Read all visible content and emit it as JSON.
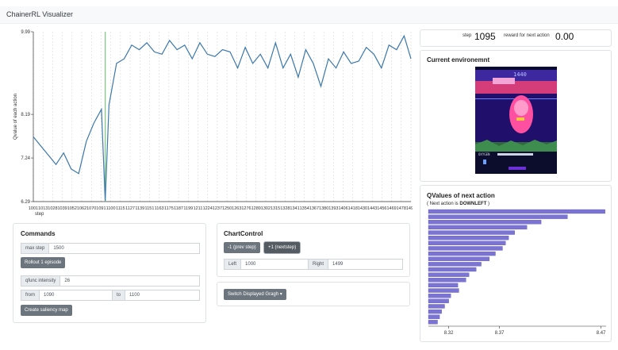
{
  "navbar": {
    "brand": "ChainerRL Visualizer"
  },
  "chart": {
    "ylabel": "Qvalue of each action",
    "xlabel": "step",
    "y_ticks": [
      "9.99",
      "8.19",
      "7.24",
      "6.29"
    ],
    "x_ticks": [
      "1001",
      "1013",
      "1028",
      "1039",
      "1052",
      "1062",
      "1070",
      "1091",
      "1100",
      "1115",
      "1127",
      "1139",
      "1151",
      "1163",
      "1175",
      "1187",
      "1199",
      "1211",
      "1224",
      "1237",
      "1250",
      "1263",
      "1276",
      "1289",
      "1302",
      "1315",
      "1328",
      "1341",
      "1354",
      "1367",
      "1380",
      "1393",
      "1406",
      "1418",
      "1430",
      "1443",
      "1456",
      "1469",
      "1478",
      "1490"
    ],
    "line_color": "#3b78ab",
    "marker_color": "#7ec47e"
  },
  "chart_data": {
    "type": "line",
    "xlabel": "step",
    "ylabel": "Qvalue of each action",
    "xlim": [
      1000,
      1499
    ],
    "ylim": [
      6.29,
      9.99
    ],
    "highlight_step": 1095,
    "x": [
      1000,
      1010,
      1020,
      1030,
      1040,
      1050,
      1060,
      1070,
      1080,
      1090,
      1095,
      1100,
      1110,
      1120,
      1130,
      1140,
      1150,
      1160,
      1170,
      1180,
      1190,
      1200,
      1210,
      1220,
      1230,
      1240,
      1250,
      1260,
      1270,
      1280,
      1290,
      1300,
      1310,
      1320,
      1330,
      1340,
      1350,
      1360,
      1370,
      1380,
      1390,
      1400,
      1410,
      1420,
      1430,
      1440,
      1450,
      1460,
      1470,
      1480,
      1490,
      1499
    ],
    "series": [
      {
        "values": [
          7.7,
          7.5,
          7.3,
          7.1,
          7.35,
          7.0,
          6.9,
          7.6,
          8.0,
          8.3,
          6.3,
          8.4,
          9.3,
          9.4,
          9.7,
          9.6,
          9.75,
          9.55,
          9.5,
          9.8,
          9.6,
          9.7,
          9.4,
          9.75,
          9.5,
          9.45,
          9.6,
          9.55,
          9.2,
          9.65,
          9.3,
          9.5,
          9.2,
          9.75,
          9.2,
          9.5,
          9.0,
          9.6,
          9.3,
          8.8,
          9.4,
          9.2,
          9.55,
          9.3,
          9.35,
          9.65,
          9.5,
          9.2,
          9.7,
          9.6,
          9.9,
          9.4
        ]
      }
    ]
  },
  "commands": {
    "title": "Commands",
    "max_step_label": "max step",
    "max_step_value": "1500",
    "rollout_button": "Rollout 1 episode",
    "qfunc_label": "qfunc intensity",
    "qfunc_value": "26",
    "from_label": "from",
    "from_value": "1090",
    "to_label": "to",
    "to_value": "1100",
    "saliency_button": "Create saliency map"
  },
  "chartcontrol": {
    "title": "ChartControl",
    "prev_button": "-1 (prev step)",
    "next_button": "+1 (nextstep)",
    "left_label": "Left",
    "left_value": "1000",
    "right_label": "Right",
    "right_value": "1499"
  },
  "switch_graph_button": "Switch Displayed Gragh",
  "step_panel": {
    "step_label": "step",
    "step_value": "1095",
    "reward_label": "reward for next action",
    "reward_value": "0.00"
  },
  "environment": {
    "title": "Current environemnt",
    "score": "1440"
  },
  "qvalues": {
    "title": "QValues of next action",
    "subtitle_prefix": "( Next action is ",
    "next_action": "DOWNLEFT",
    "subtitle_suffix": " )",
    "bar_color": "#7b74d3",
    "x_ticks": [
      "8.32",
      "8.37",
      "8.47"
    ],
    "bars": [
      8.474,
      8.437,
      8.411,
      8.397,
      8.385,
      8.379,
      8.376,
      8.373,
      8.366,
      8.36,
      8.352,
      8.347,
      8.34,
      8.337,
      8.329,
      8.33,
      8.322,
      8.32,
      8.316,
      8.313,
      8.311,
      8.309
    ]
  }
}
